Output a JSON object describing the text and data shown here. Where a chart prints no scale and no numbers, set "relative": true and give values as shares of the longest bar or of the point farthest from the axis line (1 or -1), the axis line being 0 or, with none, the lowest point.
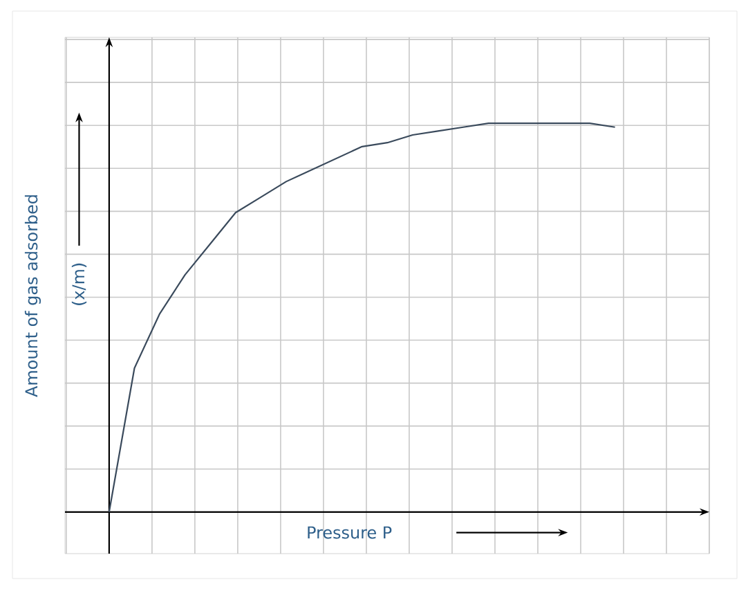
{
  "chart_data": {
    "type": "line",
    "relative": true,
    "xlabel": "Pressure P",
    "ylabel": "Amount of gas adsorbed",
    "annotations": [
      "(x/m)"
    ],
    "categories": [
      null,
      null,
      null,
      null,
      null,
      null,
      null,
      null,
      null,
      null,
      null,
      null,
      null,
      null,
      null,
      null,
      null,
      null,
      null,
      null,
      null
    ],
    "series": [
      {
        "color": "#3a4a5c",
        "values": [
          0,
          0.37,
          0.51,
          0.61,
          0.69,
          0.77,
          0.81,
          0.85,
          0.88,
          0.91,
          0.94,
          0.95,
          0.97,
          0.98,
          0.99,
          1.0,
          1.0,
          1.0,
          1.0,
          1.0,
          0.99
        ]
      }
    ],
    "grid": true,
    "marker": "none",
    "line_style": "solid"
  }
}
